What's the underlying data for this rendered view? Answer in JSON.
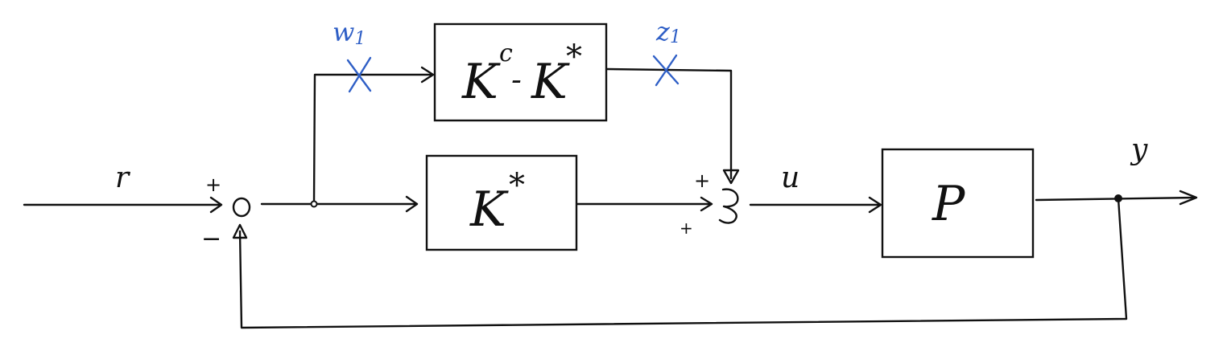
{
  "colors": {
    "ink": "#111111",
    "annotation": "#2f5fc6"
  },
  "signals": {
    "reference": "r",
    "control": "u",
    "output": "y",
    "perturbation_in": "w",
    "perturbation_in_sub": "1",
    "perturbation_out": "z",
    "perturbation_out_sub": "1"
  },
  "blocks": {
    "uncertainty": {
      "base": "K",
      "sup_c": "c",
      "minus": "-",
      "base2": "K",
      "star": "*"
    },
    "controller": {
      "base": "K",
      "star": "*"
    },
    "plant": {
      "base": "P"
    }
  },
  "summing_junction_1": {
    "top_sign": "+",
    "bottom_sign": "−"
  },
  "summing_junction_2": {
    "top_sign": "+",
    "bottom_sign": "+"
  },
  "markers": {
    "cut_w1": "×",
    "cut_z1": "×"
  }
}
